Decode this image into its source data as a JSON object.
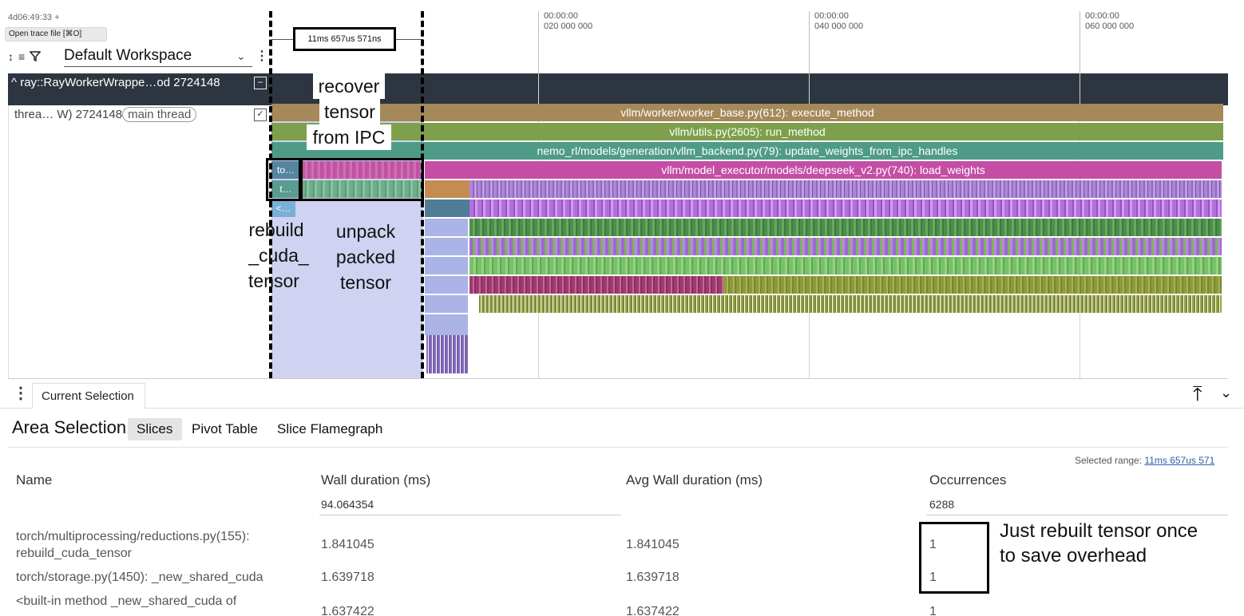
{
  "header": {
    "origin_time": "4d06:49:33 +",
    "tooltip": "Open trace file [⌘O]",
    "workspace": "Default Workspace",
    "selection_range": "11ms 657us 571ns"
  },
  "timeline": {
    "ticks": [
      {
        "line1": "00:00:00",
        "line2": "020 000 000"
      },
      {
        "line1": "00:00:00",
        "line2": "040 000 000"
      },
      {
        "line1": "00:00:00",
        "line2": "060 000 000"
      }
    ]
  },
  "tracks": {
    "process_name": "ray::RayWorkerWrappe…od 2724148",
    "thread_name": "threa… W) 2724148",
    "thread_tag": "main thread",
    "short_labels": [
      "to…",
      "t…",
      "<…"
    ]
  },
  "slices": [
    {
      "label": "vllm/worker/worker_base.py(612): execute_method",
      "color": "#a5895a"
    },
    {
      "label": "vllm/utils.py(2605): run_method",
      "color": "#7ea04c"
    },
    {
      "label": "nemo_rl/models/generation/vllm_backend.py(79): update_weights_from_ipc_handles",
      "color": "#4e9c88"
    },
    {
      "label": "vllm/model_executor/models/deepseek_v2.py(740): load_weights",
      "color": "#c44ea6"
    }
  ],
  "annotations": {
    "recover": [
      "recover",
      "tensor",
      "from IPC"
    ],
    "rebuild": [
      "rebuild",
      "_cuda_",
      "tensor"
    ],
    "unpack": [
      "unpack",
      "packed",
      "tensor"
    ],
    "occurrence_note": [
      "Just rebuilt tensor once",
      "to save overhead"
    ]
  },
  "panel": {
    "tab": "Current Selection",
    "title": "Area Selection",
    "subtabs": [
      "Slices",
      "Pivot Table",
      "Slice Flamegraph"
    ],
    "selected_range_label": "Selected range:",
    "selected_range_value": "11ms 657us 571",
    "columns": [
      "Name",
      "Wall duration (ms)",
      "Avg Wall duration (ms)",
      "Occurrences"
    ],
    "totals": {
      "wall": "94.064354",
      "occurrences": "6288"
    },
    "rows": [
      {
        "name": "torch/multiprocessing/reductions.py(155): rebuild_cuda_tensor",
        "wall": "1.841045",
        "avg": "1.841045",
        "occ": "1"
      },
      {
        "name": "torch/storage.py(1450): _new_shared_cuda",
        "wall": "1.639718",
        "avg": "1.639718",
        "occ": "1"
      },
      {
        "name": "<built-in method _new_shared_cuda of",
        "wall": "1.637422",
        "avg": "1.637422",
        "occ": "1"
      }
    ]
  },
  "colors": {
    "process_bg": "#2d3540",
    "selection_band": "#cfd2f0",
    "link": "#2f5fa8"
  }
}
